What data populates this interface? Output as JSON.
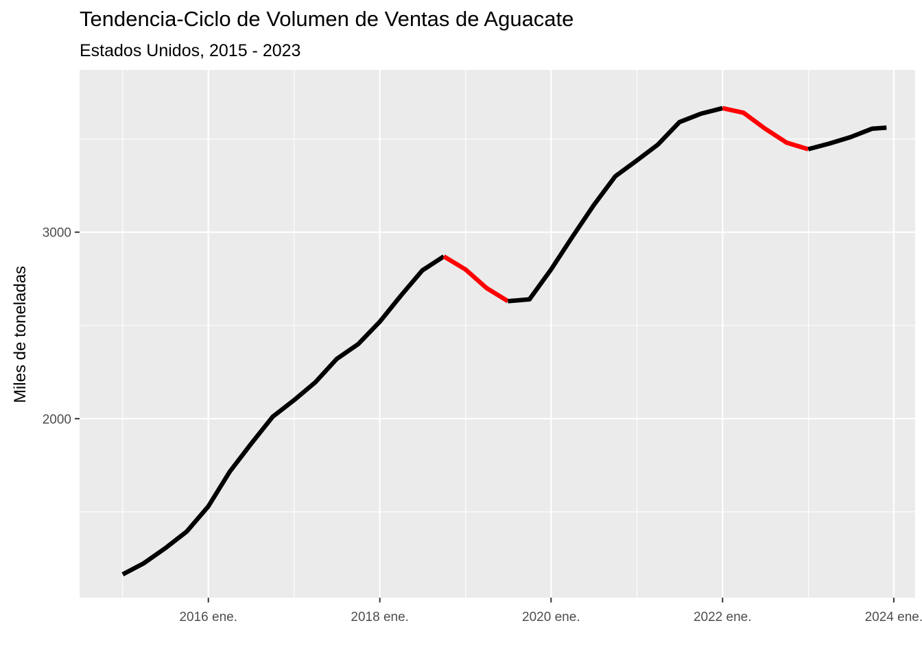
{
  "chart_data": {
    "type": "line",
    "title": "Tendencia-Ciclo de Volumen de Ventas de Aguacate",
    "subtitle": "Estados Unidos, 2015 - 2023",
    "xlabel": "",
    "ylabel": "Miles de toneladas",
    "x_ticks": [
      {
        "x": "2016-01-01",
        "label": "2016 ene."
      },
      {
        "x": "2018-01-01",
        "label": "2018 ene."
      },
      {
        "x": "2020-01-01",
        "label": "2020 ene."
      },
      {
        "x": "2022-01-01",
        "label": "2022 ene."
      },
      {
        "x": "2024-01-01",
        "label": "2024 ene."
      }
    ],
    "y_ticks": [
      {
        "y": 2000,
        "label": "2000"
      },
      {
        "y": 3000,
        "label": "3000"
      }
    ],
    "xlim": [
      "2014-07-01",
      "2024-04-01"
    ],
    "ylim": [
      1040,
      3870
    ],
    "grid": true,
    "background": "#EBEBEB",
    "series": [
      {
        "color": "#000000",
        "points": [
          [
            "2015-01-01",
            1165
          ],
          [
            "2015-04-01",
            1225
          ],
          [
            "2015-07-01",
            1305
          ],
          [
            "2015-10-01",
            1395
          ],
          [
            "2016-01-01",
            1530
          ],
          [
            "2016-04-01",
            1715
          ],
          [
            "2016-07-01",
            1865
          ],
          [
            "2016-10-01",
            2010
          ],
          [
            "2017-01-01",
            2100
          ],
          [
            "2017-04-01",
            2195
          ],
          [
            "2017-07-01",
            2320
          ],
          [
            "2017-10-01",
            2400
          ],
          [
            "2018-01-01",
            2520
          ],
          [
            "2018-04-01",
            2660
          ],
          [
            "2018-07-01",
            2795
          ],
          [
            "2018-10-01",
            2870
          ]
        ]
      },
      {
        "color": "#FF0000",
        "points": [
          [
            "2018-10-01",
            2870
          ],
          [
            "2019-01-01",
            2800
          ],
          [
            "2019-04-01",
            2700
          ],
          [
            "2019-07-01",
            2630
          ]
        ]
      },
      {
        "color": "#000000",
        "points": [
          [
            "2019-07-01",
            2630
          ],
          [
            "2019-10-01",
            2640
          ],
          [
            "2020-01-01",
            2800
          ],
          [
            "2020-04-01",
            2975
          ],
          [
            "2020-07-01",
            3145
          ],
          [
            "2020-10-01",
            3300
          ],
          [
            "2021-01-01",
            3385
          ],
          [
            "2021-04-01",
            3470
          ],
          [
            "2021-07-01",
            3590
          ],
          [
            "2021-10-01",
            3635
          ],
          [
            "2022-01-01",
            3665
          ]
        ]
      },
      {
        "color": "#FF0000",
        "points": [
          [
            "2022-01-01",
            3665
          ],
          [
            "2022-04-01",
            3640
          ],
          [
            "2022-07-01",
            3555
          ],
          [
            "2022-10-01",
            3480
          ],
          [
            "2023-01-01",
            3445
          ]
        ]
      },
      {
        "color": "#000000",
        "points": [
          [
            "2023-01-01",
            3445
          ],
          [
            "2023-04-01",
            3475
          ],
          [
            "2023-07-01",
            3510
          ],
          [
            "2023-10-01",
            3555
          ],
          [
            "2023-12-01",
            3560
          ]
        ]
      }
    ]
  }
}
